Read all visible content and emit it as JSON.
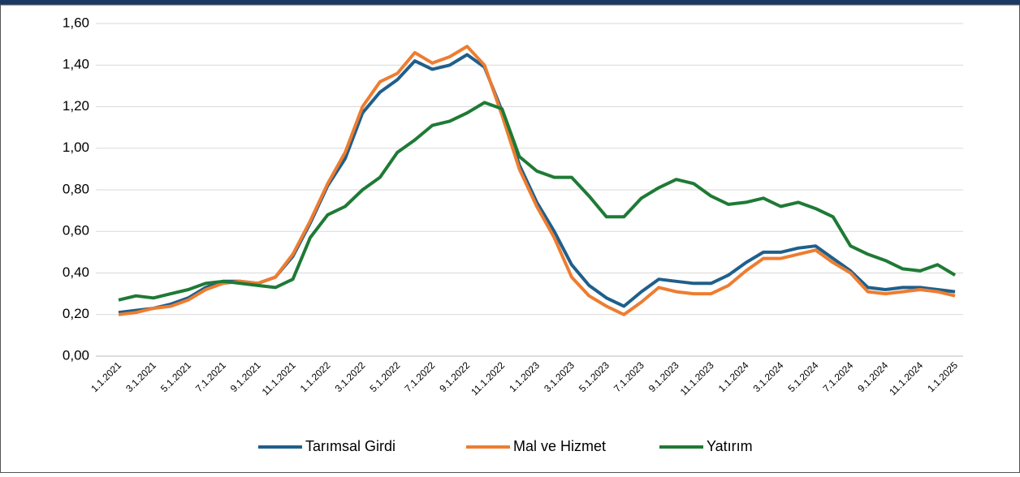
{
  "chart_data": {
    "type": "line",
    "categories": [
      "1.1.2021",
      null,
      "3.1.2021",
      null,
      "5.1.2021",
      null,
      "7.1.2021",
      null,
      "9.1.2021",
      null,
      "11.1.2021",
      null,
      "1.1.2022",
      null,
      "3.1.2022",
      null,
      "5.1.2022",
      null,
      "7.1.2022",
      null,
      "9.1.2022",
      null,
      "11.1.2022",
      null,
      "1.1.2023",
      null,
      "3.1.2023",
      null,
      "5.1.2023",
      null,
      "7.1.2023",
      null,
      "9.1.2023",
      null,
      "11.1.2023",
      null,
      "1.1.2024",
      null,
      "3.1.2024",
      null,
      "5.1.2024",
      null,
      "7.1.2024",
      null,
      "9.1.2024",
      null,
      "11.1.2024",
      null,
      "1.1.2025"
    ],
    "series": [
      {
        "name": "Tarımsal Girdi",
        "color": "#1f5f8b",
        "values": [
          0.21,
          0.22,
          0.23,
          0.25,
          0.28,
          0.33,
          0.36,
          0.36,
          0.35,
          0.38,
          0.48,
          0.64,
          0.82,
          0.95,
          1.17,
          1.27,
          1.33,
          1.42,
          1.38,
          1.4,
          1.45,
          1.39,
          1.18,
          0.92,
          0.74,
          0.6,
          0.44,
          0.34,
          0.28,
          0.24,
          0.31,
          0.37,
          0.36,
          0.35,
          0.35,
          0.39,
          0.45,
          0.5,
          0.5,
          0.52,
          0.53,
          0.47,
          0.41,
          0.33,
          0.32,
          0.33,
          0.33,
          0.32,
          0.31
        ]
      },
      {
        "name": "Mal ve Hizmet",
        "color": "#ed7d31",
        "values": [
          0.2,
          0.21,
          0.23,
          0.24,
          0.27,
          0.32,
          0.35,
          0.36,
          0.35,
          0.38,
          0.49,
          0.65,
          0.83,
          0.98,
          1.2,
          1.32,
          1.36,
          1.46,
          1.41,
          1.44,
          1.49,
          1.4,
          1.16,
          0.9,
          0.72,
          0.57,
          0.38,
          0.29,
          0.24,
          0.2,
          0.26,
          0.33,
          0.31,
          0.3,
          0.3,
          0.34,
          0.41,
          0.47,
          0.47,
          0.49,
          0.51,
          0.45,
          0.4,
          0.31,
          0.3,
          0.31,
          0.32,
          0.31,
          0.29
        ]
      },
      {
        "name": "Yatırım",
        "color": "#1e7a35",
        "values": [
          0.27,
          0.29,
          0.28,
          0.3,
          0.32,
          0.35,
          0.36,
          0.35,
          0.34,
          0.33,
          0.37,
          0.57,
          0.68,
          0.72,
          0.8,
          0.86,
          0.98,
          1.04,
          1.11,
          1.13,
          1.17,
          1.22,
          1.19,
          0.96,
          0.89,
          0.86,
          0.86,
          0.77,
          0.67,
          0.67,
          0.76,
          0.81,
          0.85,
          0.83,
          0.77,
          0.73,
          0.74,
          0.76,
          0.72,
          0.74,
          0.71,
          0.67,
          0.53,
          0.49,
          0.46,
          0.42,
          0.41,
          0.44,
          0.39
        ]
      }
    ],
    "ylim": [
      0,
      1.6
    ],
    "yticks": [
      {
        "value": 0,
        "label": "0,00"
      },
      {
        "value": 0.2,
        "label": "0,20"
      },
      {
        "value": 0.4,
        "label": "0,40"
      },
      {
        "value": 0.6,
        "label": "0,60"
      },
      {
        "value": 0.8,
        "label": "0,80"
      },
      {
        "value": 1.0,
        "label": "1,00"
      },
      {
        "value": 1.2,
        "label": "1,20"
      },
      {
        "value": 1.4,
        "label": "1,40"
      },
      {
        "value": 1.6,
        "label": "1,60"
      }
    ],
    "grid": true,
    "legend": "bottom"
  }
}
